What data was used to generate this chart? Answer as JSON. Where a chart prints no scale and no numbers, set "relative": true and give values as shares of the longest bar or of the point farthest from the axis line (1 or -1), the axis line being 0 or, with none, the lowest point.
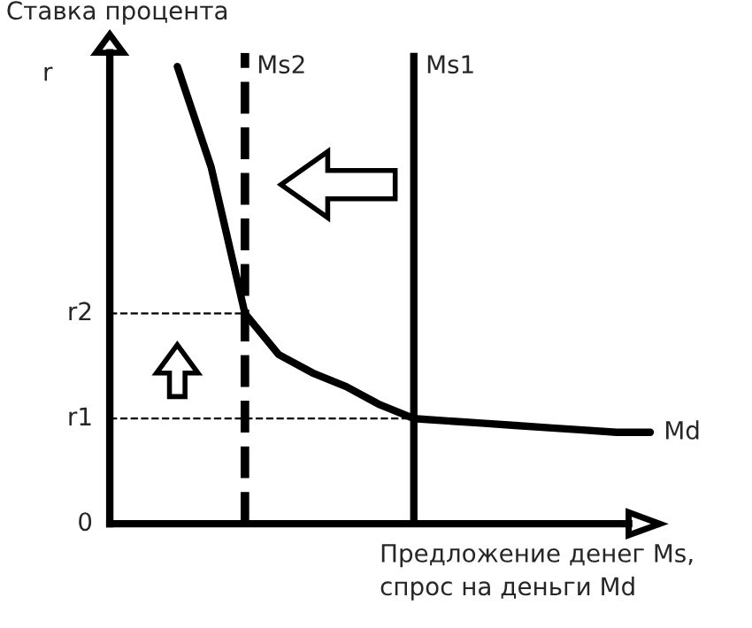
{
  "chart_data": {
    "type": "line",
    "relative": true,
    "title": "Ставка процента",
    "ylabel": "r",
    "xlabel": "Предложение денег Ms,\nспрос на деньги Md",
    "categories": [
      null,
      null,
      null,
      null,
      null,
      null,
      null,
      null,
      null,
      null,
      null,
      null,
      null,
      null,
      null,
      null,
      null
    ],
    "series": [
      {
        "name": "Md",
        "color": "#000000",
        "values": [
          null,
          null,
          1.0,
          0.78,
          0.46,
          0.37,
          0.33,
          0.3,
          0.26,
          0.23,
          0.225,
          0.22,
          0.215,
          0.21,
          0.205,
          0.2,
          0.2
        ]
      }
    ],
    "annotations": [
      "0",
      "Ms2",
      "Ms1"
    ],
    "ref_lines": [
      {
        "axis": "y",
        "value": 0.46,
        "label": "r2",
        "color": "#000000",
        "line_style": "dashed"
      },
      {
        "axis": "y",
        "value": 0.23,
        "label": "r1",
        "color": "#000000",
        "line_style": "dashed"
      }
    ],
    "marker": "none",
    "line_style": "solid"
  }
}
